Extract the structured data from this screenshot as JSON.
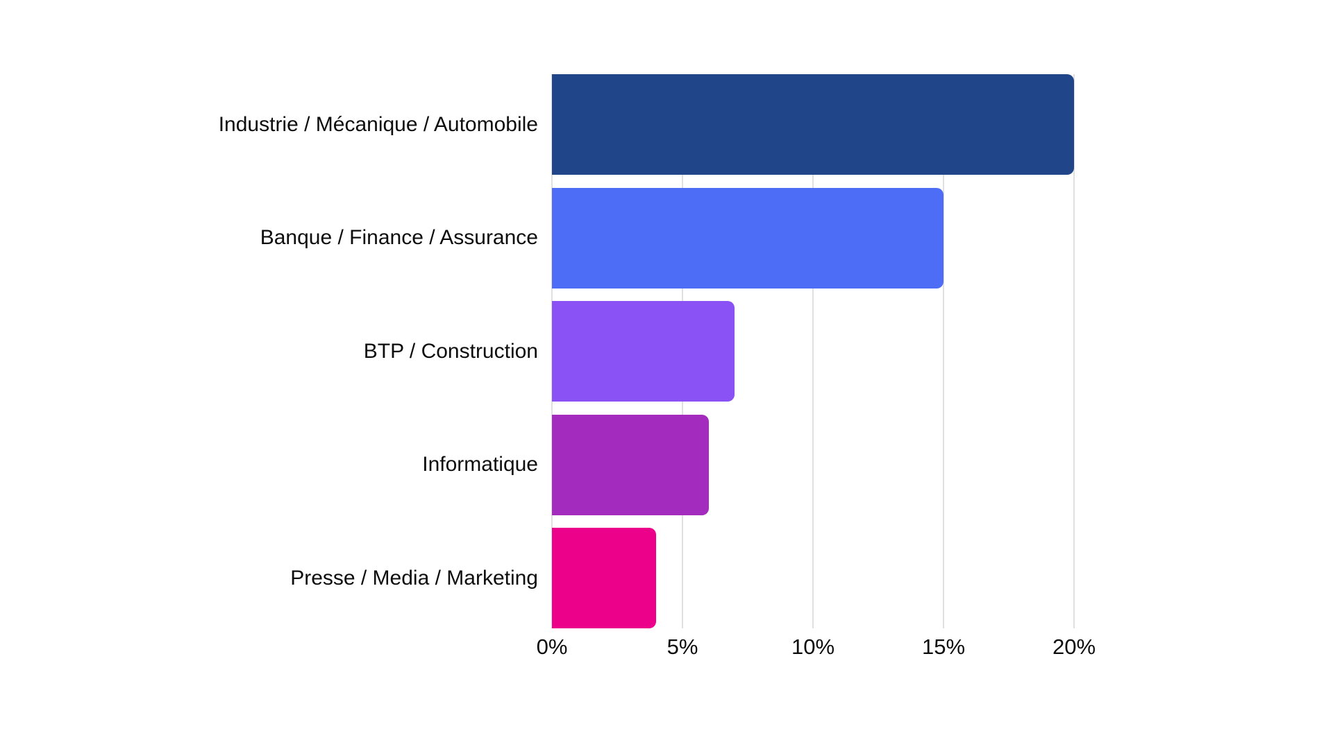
{
  "chart_data": {
    "type": "bar",
    "orientation": "horizontal",
    "title": "",
    "xlabel": "",
    "ylabel": "",
    "categories": [
      "Industrie / Mécanique / Automobile",
      "Banque / Finance / Assurance",
      "BTP / Construction",
      "Informatique",
      "Presse / Media / Marketing"
    ],
    "values": [
      20,
      15,
      7,
      6,
      4
    ],
    "unit": "%",
    "xlim": [
      0,
      20
    ],
    "x_ticks": [
      "0%",
      "5%",
      "10%",
      "15%",
      "20%"
    ],
    "x_tick_values": [
      0,
      5,
      10,
      15,
      20
    ],
    "grid": "vertical-only",
    "legend": "none",
    "bar_colors": [
      "#204588",
      "#4d6df7",
      "#8a51f5",
      "#a32cbe",
      "#ec018b"
    ],
    "gridline_color": "#e0e0e0",
    "background_color": "#ffffff",
    "text_color": "#0d0d0d",
    "bar_corner_style": "rounded-right"
  }
}
